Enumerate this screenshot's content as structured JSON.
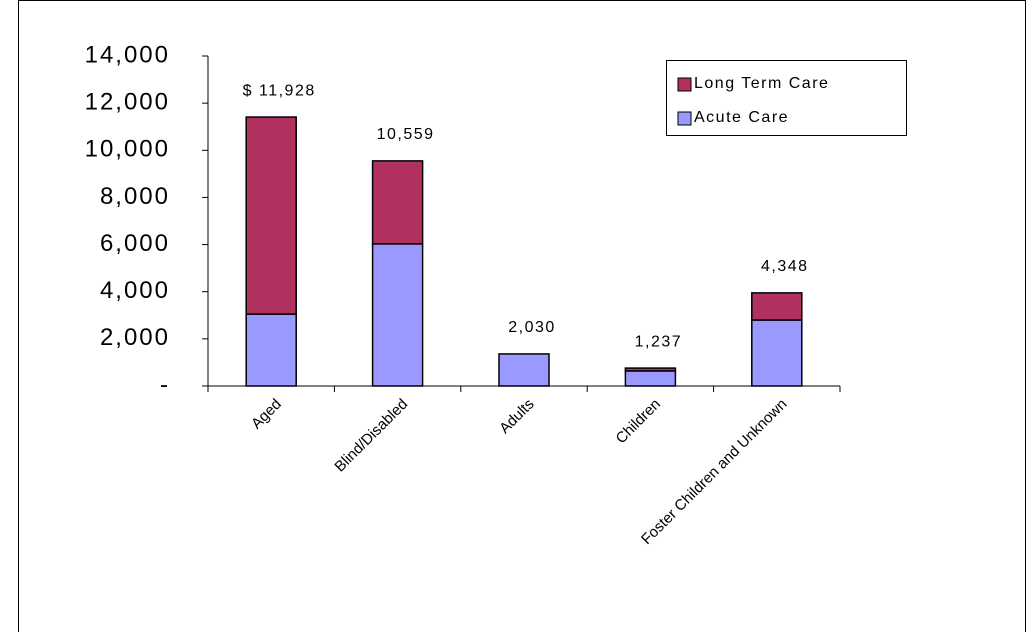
{
  "chart_data": {
    "type": "stacked_bar",
    "categories": [
      "Aged",
      "Blind/Disabled",
      "Adults",
      "Children",
      "Foster Children and Unknown"
    ],
    "series": [
      {
        "name": "Acute Care",
        "color": "#9999ff",
        "values": [
          3050,
          6030,
          1360,
          640,
          2800
        ]
      },
      {
        "name": "Long Term Care",
        "color": "#b03060",
        "values": [
          8360,
          3520,
          0,
          120,
          1150
        ]
      }
    ],
    "annotations": [
      "$ 11,928",
      "10,559",
      "2,030",
      "1,237",
      "4,348"
    ],
    "ylim": [
      0,
      14000
    ],
    "yticks": [
      {
        "value": 0,
        "label": "-"
      },
      {
        "value": 2000,
        "label": "2,000"
      },
      {
        "value": 4000,
        "label": "4,000"
      },
      {
        "value": 6000,
        "label": "6,000"
      },
      {
        "value": 8000,
        "label": "8,000"
      },
      {
        "value": 10000,
        "label": "10,000"
      },
      {
        "value": 12000,
        "label": "12,000"
      },
      {
        "value": 14000,
        "label": "14,000"
      }
    ],
    "legend": "top-right"
  }
}
